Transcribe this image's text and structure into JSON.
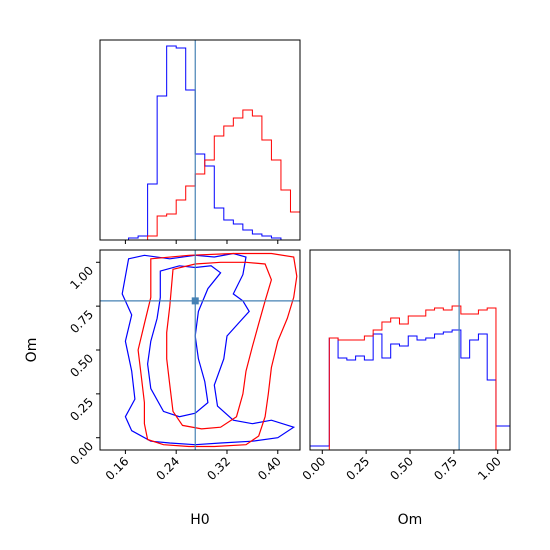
{
  "chart_data": [
    {
      "type": "histogram",
      "panel": "H0 marginal",
      "xlim": [
        0.12,
        0.435
      ],
      "x_ticks": [
        0.16,
        0.24,
        0.32,
        0.4
      ],
      "truth_line": 0.27,
      "series": [
        {
          "color": "#0000ff",
          "bin_edges": [
            0.12,
            0.135,
            0.15,
            0.165,
            0.18,
            0.195,
            0.21,
            0.225,
            0.24,
            0.255,
            0.27,
            0.285,
            0.3,
            0.315,
            0.33,
            0.345,
            0.36,
            0.375,
            0.39,
            0.405,
            0.42,
            0.435
          ],
          "counts": [
            0,
            0,
            0,
            0.01,
            0.02,
            0.28,
            0.72,
            0.97,
            0.96,
            0.75,
            0.43,
            0.37,
            0.16,
            0.1,
            0.08,
            0.05,
            0.03,
            0.02,
            0.01,
            0,
            0
          ]
        },
        {
          "color": "#ff0000",
          "bin_edges": [
            0.12,
            0.135,
            0.15,
            0.165,
            0.18,
            0.195,
            0.21,
            0.225,
            0.24,
            0.255,
            0.27,
            0.285,
            0.3,
            0.315,
            0.33,
            0.345,
            0.36,
            0.375,
            0.39,
            0.405,
            0.42,
            0.435
          ],
          "counts": [
            0,
            0,
            0,
            0,
            0,
            0.02,
            0.12,
            0.13,
            0.2,
            0.27,
            0.33,
            0.4,
            0.52,
            0.57,
            0.61,
            0.65,
            0.62,
            0.5,
            0.4,
            0.25,
            0.14
          ]
        }
      ]
    },
    {
      "type": "contour",
      "panel": "H0 vs Om",
      "xlabel": "H0",
      "ylabel": "Om",
      "xlim": [
        0.12,
        0.435
      ],
      "ylim": [
        -0.07,
        1.07
      ],
      "x_ticks": [
        0.16,
        0.24,
        0.32,
        0.4
      ],
      "y_ticks": [
        0.0,
        0.25,
        0.5,
        0.75,
        1.0
      ],
      "truth_point": [
        0.27,
        0.78
      ],
      "series": [
        {
          "color": "#0000ff",
          "contours": [
            [
              [
                0.165,
                1.02
              ],
              [
                0.19,
                1.04
              ],
              [
                0.23,
                1.02
              ],
              [
                0.27,
                1.04
              ],
              [
                0.3,
                1.03
              ],
              [
                0.33,
                1.05
              ],
              [
                0.35,
                1.03
              ],
              [
                0.345,
                0.93
              ],
              [
                0.33,
                0.82
              ],
              [
                0.345,
                0.78
              ],
              [
                0.355,
                0.72
              ],
              [
                0.34,
                0.66
              ],
              [
                0.32,
                0.58
              ],
              [
                0.315,
                0.45
              ],
              [
                0.3,
                0.3
              ],
              [
                0.305,
                0.18
              ],
              [
                0.33,
                0.1
              ],
              [
                0.36,
                0.08
              ],
              [
                0.39,
                0.1
              ],
              [
                0.425,
                0.06
              ],
              [
                0.4,
                0.0
              ],
              [
                0.36,
                -0.02
              ],
              [
                0.31,
                -0.03
              ],
              [
                0.27,
                -0.04
              ],
              [
                0.23,
                -0.03
              ],
              [
                0.2,
                -0.02
              ],
              [
                0.17,
                0.04
              ],
              [
                0.16,
                0.12
              ],
              [
                0.175,
                0.22
              ],
              [
                0.17,
                0.38
              ],
              [
                0.16,
                0.55
              ],
              [
                0.17,
                0.7
              ],
              [
                0.155,
                0.82
              ],
              [
                0.16,
                0.92
              ],
              [
                0.165,
                1.02
              ]
            ],
            [
              [
                0.215,
                0.95
              ],
              [
                0.245,
                0.98
              ],
              [
                0.27,
                0.97
              ],
              [
                0.295,
                0.98
              ],
              [
                0.31,
                0.94
              ],
              [
                0.29,
                0.85
              ],
              [
                0.275,
                0.72
              ],
              [
                0.27,
                0.58
              ],
              [
                0.275,
                0.45
              ],
              [
                0.285,
                0.32
              ],
              [
                0.29,
                0.2
              ],
              [
                0.27,
                0.14
              ],
              [
                0.245,
                0.12
              ],
              [
                0.22,
                0.15
              ],
              [
                0.2,
                0.28
              ],
              [
                0.195,
                0.42
              ],
              [
                0.2,
                0.55
              ],
              [
                0.21,
                0.68
              ],
              [
                0.215,
                0.8
              ],
              [
                0.215,
                0.95
              ]
            ]
          ]
        },
        {
          "color": "#ff0000",
          "contours": [
            [
              [
                0.2,
                1.02
              ],
              [
                0.26,
                1.04
              ],
              [
                0.33,
                1.05
              ],
              [
                0.39,
                1.05
              ],
              [
                0.425,
                1.03
              ],
              [
                0.43,
                0.92
              ],
              [
                0.425,
                0.8
              ],
              [
                0.415,
                0.68
              ],
              [
                0.4,
                0.55
              ],
              [
                0.39,
                0.4
              ],
              [
                0.385,
                0.25
              ],
              [
                0.38,
                0.12
              ],
              [
                0.37,
                0.01
              ],
              [
                0.35,
                -0.04
              ],
              [
                0.3,
                -0.05
              ],
              [
                0.26,
                -0.05
              ],
              [
                0.22,
                -0.04
              ],
              [
                0.195,
                -0.01
              ],
              [
                0.19,
                0.08
              ],
              [
                0.19,
                0.2
              ],
              [
                0.185,
                0.35
              ],
              [
                0.18,
                0.5
              ],
              [
                0.19,
                0.65
              ],
              [
                0.2,
                0.8
              ],
              [
                0.2,
                1.02
              ]
            ],
            [
              [
                0.235,
                0.96
              ],
              [
                0.27,
                0.99
              ],
              [
                0.31,
                1.0
              ],
              [
                0.35,
                1.0
              ],
              [
                0.38,
                0.99
              ],
              [
                0.39,
                0.9
              ],
              [
                0.38,
                0.78
              ],
              [
                0.37,
                0.65
              ],
              [
                0.36,
                0.52
              ],
              [
                0.35,
                0.38
              ],
              [
                0.345,
                0.25
              ],
              [
                0.335,
                0.12
              ],
              [
                0.31,
                0.06
              ],
              [
                0.28,
                0.05
              ],
              [
                0.25,
                0.07
              ],
              [
                0.235,
                0.15
              ],
              [
                0.23,
                0.3
              ],
              [
                0.225,
                0.45
              ],
              [
                0.225,
                0.6
              ],
              [
                0.23,
                0.75
              ],
              [
                0.235,
                0.96
              ]
            ]
          ]
        }
      ]
    },
    {
      "type": "histogram",
      "panel": "Om marginal",
      "xlabel": "Om",
      "xlim": [
        -0.07,
        1.07
      ],
      "x_ticks": [
        0.0,
        0.25,
        0.5,
        0.75,
        1.0
      ],
      "truth_line": 0.78,
      "series": [
        {
          "color": "#0000ff",
          "bin_edges": [
            -0.07,
            -0.01,
            0.04,
            0.09,
            0.14,
            0.19,
            0.24,
            0.29,
            0.34,
            0.39,
            0.44,
            0.49,
            0.54,
            0.59,
            0.64,
            0.69,
            0.74,
            0.79,
            0.84,
            0.89,
            0.94,
            0.99,
            1.04,
            1.07
          ],
          "counts": [
            0.02,
            0.02,
            0.56,
            0.46,
            0.45,
            0.47,
            0.45,
            0.58,
            0.46,
            0.53,
            0.52,
            0.57,
            0.55,
            0.56,
            0.58,
            0.59,
            0.6,
            0.46,
            0.55,
            0.58,
            0.35,
            0.12,
            0.12
          ]
        },
        {
          "color": "#ff0000",
          "bin_edges": [
            -0.07,
            -0.01,
            0.04,
            0.09,
            0.14,
            0.19,
            0.24,
            0.29,
            0.34,
            0.39,
            0.44,
            0.49,
            0.54,
            0.59,
            0.64,
            0.69,
            0.74,
            0.79,
            0.84,
            0.89,
            0.94,
            0.99,
            1.04,
            1.07
          ],
          "counts": [
            0,
            0,
            0.56,
            0.55,
            0.55,
            0.55,
            0.57,
            0.6,
            0.64,
            0.66,
            0.63,
            0.67,
            0.67,
            0.7,
            0.71,
            0.7,
            0.72,
            0.68,
            0.68,
            0.7,
            0.71,
            0,
            0
          ]
        }
      ]
    }
  ]
}
